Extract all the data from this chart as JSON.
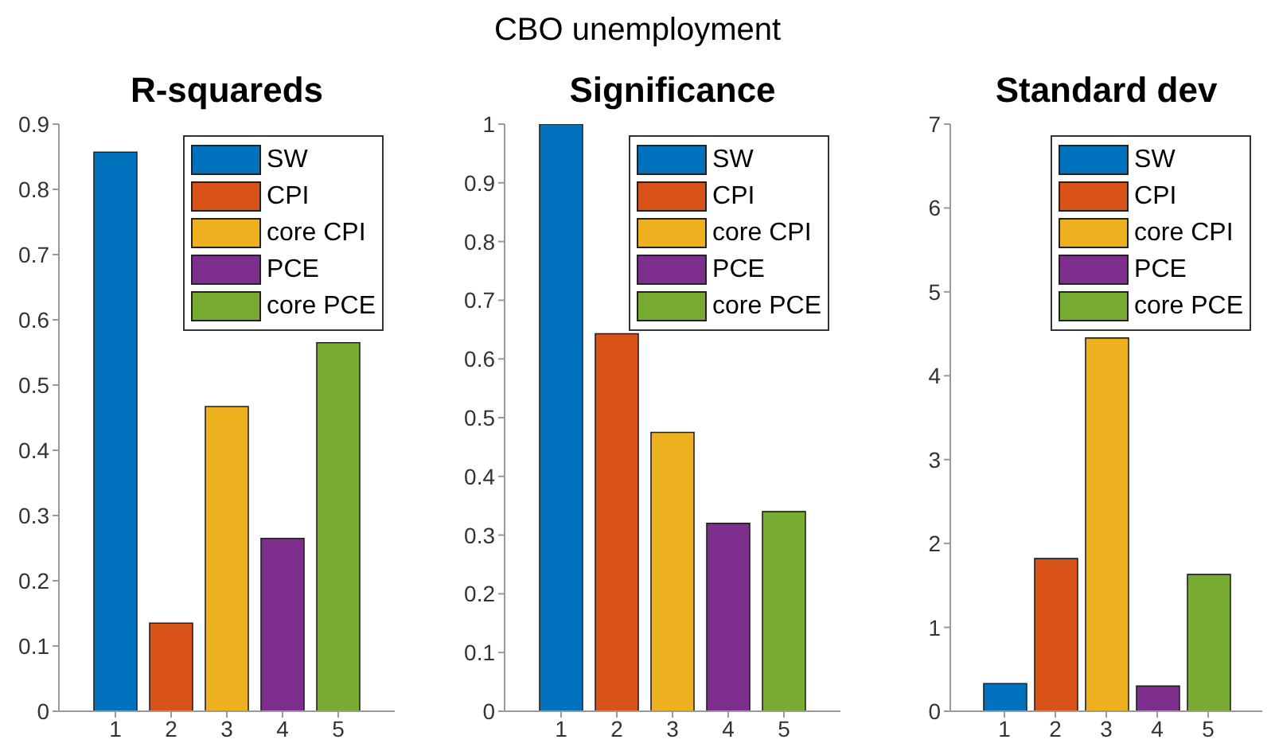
{
  "chart_data": [
    {
      "type": "bar",
      "title": "R-squareds",
      "annotations": [
        "CBO unemployment"
      ],
      "categories": [
        "1",
        "2",
        "3",
        "4",
        "5"
      ],
      "series": [
        {
          "name": "SW",
          "color": "#0072bd",
          "values": [
            0.857,
            null,
            null,
            null,
            null
          ]
        },
        {
          "name": "CPI",
          "color": "#d95319",
          "values": [
            null,
            0.135,
            null,
            null,
            null
          ]
        },
        {
          "name": "core CPI",
          "color": "#edb120",
          "values": [
            null,
            null,
            0.467,
            null,
            null
          ]
        },
        {
          "name": "PCE",
          "color": "#7e2f8e",
          "values": [
            null,
            null,
            null,
            0.265,
            null
          ]
        },
        {
          "name": "core PCE",
          "color": "#77ac30",
          "values": [
            null,
            null,
            null,
            null,
            0.565
          ]
        }
      ],
      "ylim": [
        0,
        0.9
      ],
      "yticks": [
        0,
        0.1,
        0.2,
        0.3,
        0.4,
        0.5,
        0.6,
        0.7,
        0.8,
        0.9
      ],
      "legend": "top right",
      "grid": false
    },
    {
      "type": "bar",
      "title": "Significance",
      "categories": [
        "1",
        "2",
        "3",
        "4",
        "5"
      ],
      "series": [
        {
          "name": "SW",
          "color": "#0072bd",
          "values": [
            1,
            null,
            null,
            null,
            null
          ]
        },
        {
          "name": "CPI",
          "color": "#d95319",
          "values": [
            null,
            0.643,
            null,
            null,
            null
          ]
        },
        {
          "name": "core CPI",
          "color": "#edb120",
          "values": [
            null,
            null,
            0.475,
            null,
            null
          ]
        },
        {
          "name": "PCE",
          "color": "#7e2f8e",
          "values": [
            null,
            null,
            null,
            0.32,
            null
          ]
        },
        {
          "name": "core PCE",
          "color": "#77ac30",
          "values": [
            null,
            null,
            null,
            null,
            0.34
          ]
        }
      ],
      "ylim": [
        0,
        1
      ],
      "yticks": [
        0,
        0.1,
        0.2,
        0.3,
        0.4,
        0.5,
        0.6,
        0.7,
        0.8,
        0.9,
        1
      ],
      "legend": "top right",
      "grid": false
    },
    {
      "type": "bar",
      "title": "Standard dev",
      "categories": [
        "1",
        "2",
        "3",
        "4",
        "5"
      ],
      "series": [
        {
          "name": "SW",
          "color": "#0072bd",
          "values": [
            0.33,
            null,
            null,
            null,
            null
          ]
        },
        {
          "name": "CPI",
          "color": "#d95319",
          "values": [
            null,
            1.82,
            null,
            null,
            null
          ]
        },
        {
          "name": "core CPI",
          "color": "#edb120",
          "values": [
            null,
            null,
            4.45,
            null,
            null
          ]
        },
        {
          "name": "PCE",
          "color": "#7e2f8e",
          "values": [
            null,
            null,
            null,
            0.3,
            null
          ]
        },
        {
          "name": "core PCE",
          "color": "#77ac30",
          "values": [
            null,
            null,
            null,
            null,
            1.63
          ]
        }
      ],
      "ylim": [
        0,
        7
      ],
      "yticks": [
        0,
        1,
        2,
        3,
        4,
        5,
        6,
        7
      ],
      "legend": "top right",
      "grid": false
    }
  ]
}
